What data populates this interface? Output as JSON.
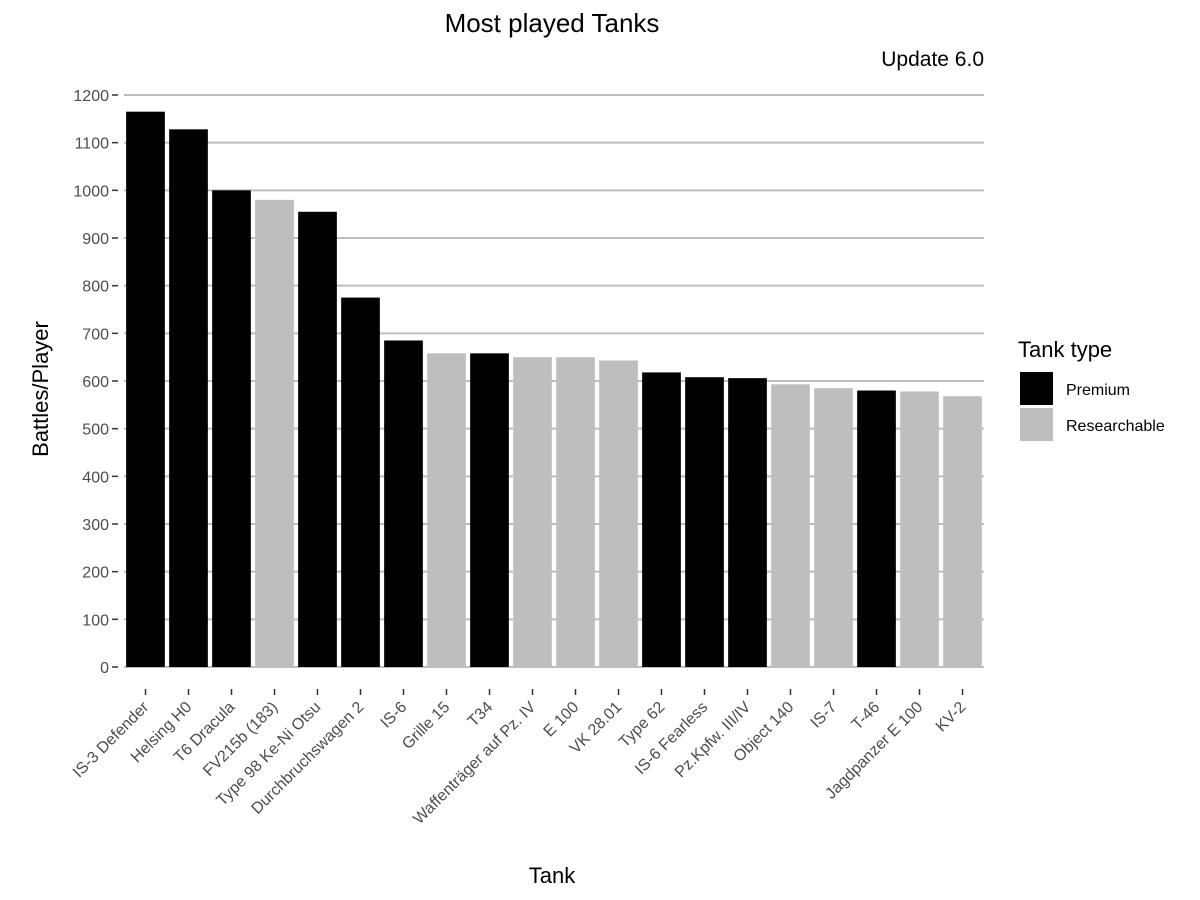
{
  "chart_data": {
    "type": "bar",
    "title": "Most played Tanks",
    "subtitle": "Update 6.0",
    "xlabel": "Tank",
    "ylabel": "Battles/Player",
    "ylim": [
      0,
      1200
    ],
    "yticks": [
      0,
      100,
      200,
      300,
      400,
      500,
      600,
      700,
      800,
      900,
      1000,
      1100,
      1200
    ],
    "grid": "horizontal",
    "legend_position": "right",
    "legend_title": "Tank type",
    "series": [
      {
        "name": "Premium",
        "color": "#000000"
      },
      {
        "name": "Researchable",
        "color": "#bebebe"
      }
    ],
    "categories": [
      "IS-3 Defender",
      "Helsing H0",
      "T6 Dracula",
      "FV215b (183)",
      "Type 98 Ke-Ni Otsu",
      "Durchbruchswagen 2",
      "IS-6",
      "Grille 15",
      "T34",
      "Waffenträger auf Pz. IV",
      "E 100",
      "VK 28.01",
      "Type 62",
      "IS-6 Fearless",
      "Pz.Kpfw. III/IV",
      "Object 140",
      "IS-7",
      "T-46",
      "Jagdpanzer E 100",
      "KV-2"
    ],
    "values": [
      1165,
      1128,
      1000,
      980,
      955,
      775,
      685,
      658,
      658,
      650,
      650,
      643,
      618,
      608,
      606,
      593,
      585,
      580,
      578,
      568
    ],
    "types": [
      "Premium",
      "Premium",
      "Premium",
      "Researchable",
      "Premium",
      "Premium",
      "Premium",
      "Researchable",
      "Premium",
      "Researchable",
      "Researchable",
      "Researchable",
      "Premium",
      "Premium",
      "Premium",
      "Researchable",
      "Researchable",
      "Premium",
      "Researchable",
      "Researchable"
    ]
  }
}
